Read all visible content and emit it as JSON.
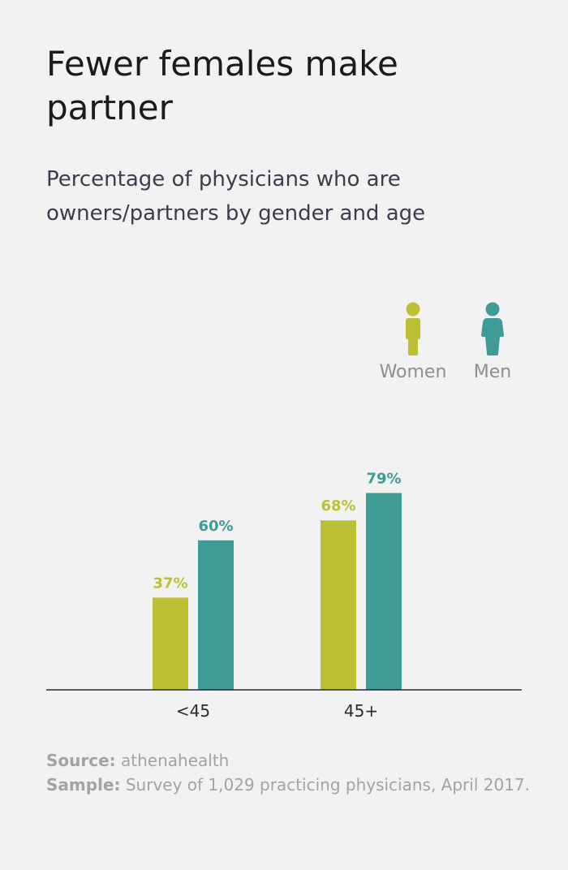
{
  "header": {
    "title": "Fewer females make partner",
    "subtitle": "Percentage of physicians who are owners/partners by gender and age"
  },
  "legend": [
    {
      "label": "Women",
      "color": "#bcc035",
      "icon": "woman-icon"
    },
    {
      "label": "Men",
      "color": "#3e9b96",
      "icon": "man-icon"
    }
  ],
  "chart_data": {
    "type": "bar",
    "categories": [
      "<45",
      "45+"
    ],
    "series": [
      {
        "name": "Women",
        "values": [
          37,
          68
        ],
        "labels": [
          "37%",
          "68%"
        ],
        "color": "#bcc035"
      },
      {
        "name": "Men",
        "values": [
          60,
          79
        ],
        "labels": [
          "60%",
          "79%"
        ],
        "color": "#3e9b96"
      }
    ],
    "title": "Fewer females make partner",
    "subtitle": "Percentage of physicians who are owners/partners by gender and age",
    "xlabel": "",
    "ylabel": "",
    "ylim": [
      0,
      100
    ],
    "grid": false,
    "legend": "top-right"
  },
  "footer": {
    "source_label": "Source:",
    "source_value": "athenahealth",
    "sample_label": "Sample:",
    "sample_value": "Survey of 1,029 practicing physicians, April 2017."
  }
}
